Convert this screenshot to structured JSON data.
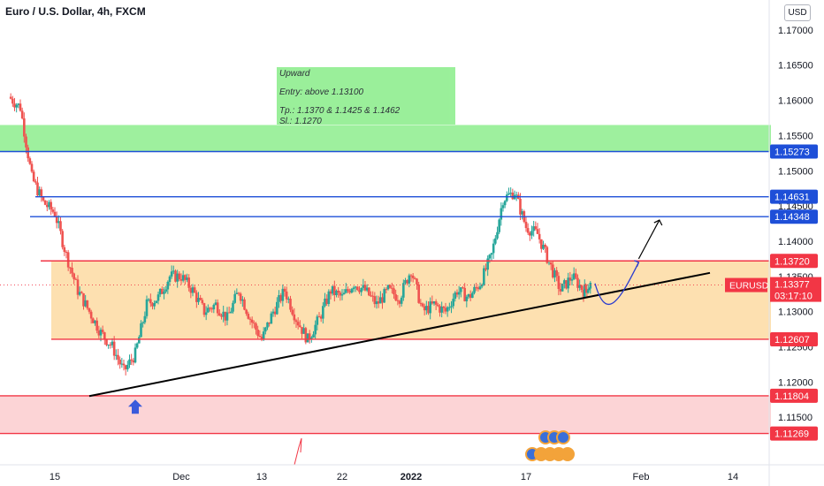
{
  "header": {
    "title": "Euro / U.S. Dollar, 4h, FXCM",
    "currency_button": "USD"
  },
  "note": {
    "line1": "Upward",
    "line2": "Entry: above 1.13100",
    "line3": "Tp.:  1.1370 & 1.1425 & 1.1462",
    "line4": "Sl.: 1.1270"
  },
  "chart_data": {
    "type": "candlestick",
    "symbol": "EURUSD",
    "timeframe": "4h",
    "y_range": [
      1.11,
      1.174
    ],
    "x_range": [
      0,
      30
    ],
    "y_ticks": [
      "1.17000",
      "1.16500",
      "1.16000",
      "1.15500",
      "1.15000",
      "1.14500",
      "1.14000",
      "1.13500",
      "1.13000",
      "1.12500",
      "1.12000",
      "1.11500"
    ],
    "x_ticks": [
      {
        "label": "15",
        "x": 2
      },
      {
        "label": "Dec",
        "x": 7.5
      },
      {
        "label": "13",
        "x": 11
      },
      {
        "label": "22",
        "x": 14.5
      },
      {
        "label": "2022",
        "x": 17.5
      },
      {
        "label": "17",
        "x": 22.5
      },
      {
        "label": "Feb",
        "x": 27.5
      },
      {
        "label": "14",
        "x": 31.5
      }
    ],
    "last_price": {
      "label": "EURUSD",
      "price": "1.13377",
      "countdown": "03:17:10",
      "value": 1.13377
    },
    "levels": [
      {
        "price": 1.15273,
        "label": "1.15273",
        "color": "#1e4fd8"
      },
      {
        "price": 1.14631,
        "label": "1.14631",
        "color": "#1e4fd8"
      },
      {
        "price": 1.14348,
        "label": "1.14348",
        "color": "#1e4fd8"
      },
      {
        "price": 1.1372,
        "label": "1.13720",
        "color": "#f23645"
      },
      {
        "price": 1.12607,
        "label": "1.12607",
        "color": "#f23645"
      },
      {
        "price": 1.11804,
        "label": "1.11804",
        "color": "#f23645"
      },
      {
        "price": 1.11269,
        "label": "1.11269",
        "color": "#f23645"
      }
    ],
    "zones": [
      {
        "from": 1.1527,
        "to": 1.1565,
        "color": "#9ef09e"
      },
      {
        "from": 1.1261,
        "to": 1.1372,
        "color": "#fde0b0"
      },
      {
        "from": 1.1127,
        "to": 1.118,
        "color": "#fcd4d6"
      }
    ],
    "trendline": {
      "from": [
        3.5,
        1.118
      ],
      "to": [
        30.5,
        1.1355
      ]
    },
    "path": [
      [
        0,
        1.1605
      ],
      [
        0.5,
        1.159
      ],
      [
        1,
        1.149
      ],
      [
        1.5,
        1.1455
      ],
      [
        2,
        1.144
      ],
      [
        2.5,
        1.138
      ],
      [
        3,
        1.133
      ],
      [
        3.5,
        1.13
      ],
      [
        4,
        1.127
      ],
      [
        4.5,
        1.125
      ],
      [
        5,
        1.1215
      ],
      [
        5.5,
        1.124
      ],
      [
        6,
        1.131
      ],
      [
        6.5,
        1.132
      ],
      [
        7,
        1.135
      ],
      [
        7.5,
        1.135
      ],
      [
        8,
        1.133
      ],
      [
        8.5,
        1.13
      ],
      [
        9,
        1.131
      ],
      [
        9.5,
        1.129
      ],
      [
        10,
        1.133
      ],
      [
        10.5,
        1.129
      ],
      [
        11,
        1.126
      ],
      [
        11.5,
        1.13
      ],
      [
        12,
        1.133
      ],
      [
        12.5,
        1.129
      ],
      [
        13,
        1.126
      ],
      [
        13.5,
        1.129
      ],
      [
        14,
        1.133
      ],
      [
        14.5,
        1.132
      ],
      [
        15,
        1.134
      ],
      [
        15.5,
        1.133
      ],
      [
        16,
        1.131
      ],
      [
        16.5,
        1.133
      ],
      [
        17,
        1.132
      ],
      [
        17.5,
        1.136
      ],
      [
        18,
        1.13
      ],
      [
        18.5,
        1.131
      ],
      [
        19,
        1.13
      ],
      [
        19.5,
        1.133
      ],
      [
        20,
        1.132
      ],
      [
        20.5,
        1.134
      ],
      [
        21,
        1.138
      ],
      [
        21.5,
        1.146
      ],
      [
        22,
        1.147
      ],
      [
        22.5,
        1.142
      ],
      [
        23,
        1.141
      ],
      [
        23.5,
        1.137
      ],
      [
        24,
        1.133
      ],
      [
        24.5,
        1.135
      ],
      [
        25,
        1.133
      ],
      [
        25.3,
        1.13377
      ]
    ],
    "projection_curve": [
      [
        25.5,
        1.134
      ],
      [
        26,
        1.131
      ],
      [
        26.6,
        1.133
      ],
      [
        27.4,
        1.137
      ]
    ],
    "projection_arrow": {
      "from": [
        27.4,
        1.1375
      ],
      "to": [
        28.3,
        1.143
      ]
    },
    "markers": [
      {
        "type": "up-arrow",
        "x": 5.5,
        "y": 1.118,
        "color": "#3b5bdb"
      }
    ]
  }
}
